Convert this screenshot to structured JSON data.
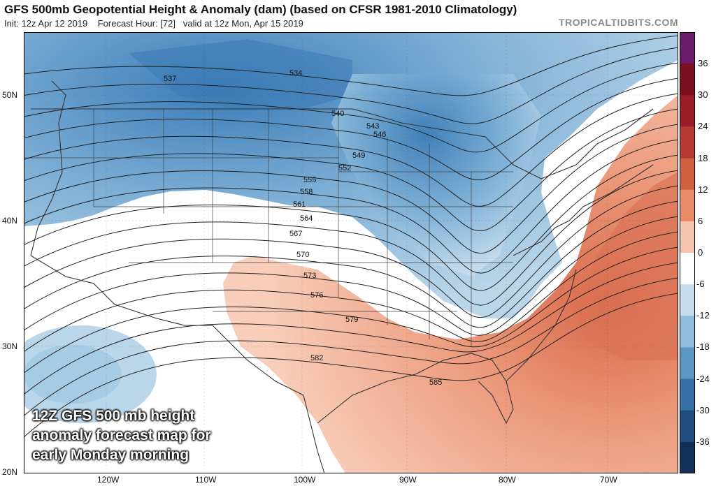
{
  "header": {
    "title": "GFS 500mb Geopotential Height & Anomaly (dam) (based on CFSR 1981-2010 Climatology)",
    "init": "Init: 12z Apr 12 2019",
    "forecast_hour": "Forecast Hour: [72]",
    "valid": "valid at 12z Mon, Apr 15 2019",
    "brand": "TROPICALTIDBITS.COM"
  },
  "axes": {
    "lat_labels": [
      "50N",
      "40N",
      "30N",
      "20N"
    ],
    "lon_labels": [
      "120W",
      "110W",
      "100W",
      "90W",
      "80W",
      "70W"
    ]
  },
  "colorbar": {
    "labels": [
      "36",
      "30",
      "24",
      "18",
      "12",
      "6",
      "0",
      "-6",
      "-12",
      "-18",
      "-24",
      "-30",
      "-36"
    ],
    "colors": [
      "#6a1b6a",
      "#7d1020",
      "#9a1c26",
      "#b83a34",
      "#d0603f",
      "#e88c68",
      "#f6c3ae",
      "#ffffff",
      "#c6dcec",
      "#8fbcdc",
      "#5a97c5",
      "#3470a6",
      "#1f4d80",
      "#12305a"
    ]
  },
  "contours": {
    "labels": [
      "534",
      "537",
      "540",
      "543",
      "546",
      "549",
      "552",
      "555",
      "558",
      "561",
      "564",
      "567",
      "570",
      "573",
      "576",
      "579",
      "582",
      "585"
    ]
  },
  "caption": {
    "line1": "12Z GFS 500 mb height",
    "line2": "anomaly forecast map for",
    "line3": "early Monday morning"
  },
  "colors": {
    "negative_anomaly": "#5a97c5",
    "positive_anomaly": "#e88c68",
    "contour": "#222222"
  }
}
